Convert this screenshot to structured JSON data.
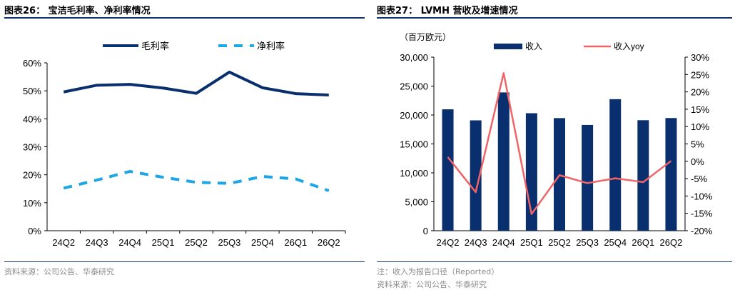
{
  "left": {
    "figure_title": "图表26：  宝洁毛利率、净利率情况",
    "source": "资料来源：公司公告、华泰研究"
  },
  "right": {
    "figure_title": "图表27：  LVMH 营收及增速情况",
    "note": "注：收入为报告口径（Reported）",
    "source": "资料来源：公司公告、华泰研究"
  },
  "colors": {
    "navy": "#0a2f6e",
    "light_blue": "#1ea6e6",
    "red": "#f06468",
    "rule": "#16306b"
  },
  "chart_data": [
    {
      "type": "line",
      "title": "",
      "categories": [
        "24Q2",
        "24Q3",
        "24Q4",
        "25Q1",
        "25Q2",
        "25Q3",
        "25Q4",
        "26Q1",
        "26Q2"
      ],
      "series": [
        {
          "name": "毛利率",
          "style": "solid",
          "color": "#0a2f6e",
          "values": [
            49.6,
            52.0,
            52.3,
            51.0,
            49.1,
            56.7,
            51.1,
            49.0,
            48.5
          ]
        },
        {
          "name": "净利率",
          "style": "dashed",
          "color": "#1ea6e6",
          "values": [
            15.2,
            18.1,
            21.2,
            19.1,
            17.3,
            16.9,
            19.4,
            18.5,
            14.3
          ]
        }
      ],
      "y_ticks": [
        "0%",
        "10%",
        "20%",
        "30%",
        "40%",
        "50%",
        "60%"
      ],
      "ylim": [
        0,
        60
      ],
      "legend_position": "top",
      "grid": false
    },
    {
      "type": "bar+line",
      "title": "",
      "unit_label": "（百万欧元）",
      "categories": [
        "24Q2",
        "24Q3",
        "24Q4",
        "25Q1",
        "25Q2",
        "25Q3",
        "25Q4",
        "26Q1",
        "26Q2"
      ],
      "bar_series": {
        "name": "收入",
        "color": "#0a2f6e",
        "values": [
          20980,
          19076,
          23903,
          20311,
          19464,
          18281,
          22736,
          19100,
          19475
        ]
      },
      "line_series": {
        "name": "收入yoy",
        "color": "#f06468",
        "values": [
          1.2,
          -8.9,
          25.4,
          -15.2,
          -4.0,
          -6.3,
          -4.9,
          -6.0,
          0.1
        ]
      },
      "y_left_ticks": [
        "0",
        "5,000",
        "10,000",
        "15,000",
        "20,000",
        "25,000",
        "30,000"
      ],
      "y_left_lim": [
        0,
        30000
      ],
      "y_right_ticks": [
        "-20%",
        "-15%",
        "-10%",
        "-5%",
        "0%",
        "5%",
        "10%",
        "15%",
        "20%",
        "25%",
        "30%"
      ],
      "y_right_lim": [
        -20,
        30
      ],
      "legend_position": "top",
      "grid": false
    }
  ]
}
